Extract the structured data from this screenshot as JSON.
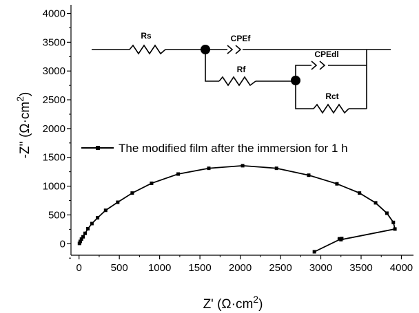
{
  "chart_data": {
    "type": "scatter",
    "xlabel": "Z' (Ω·cm",
    "xlabel_sup": "2",
    "xlabel_close": ")",
    "ylabel": "-Z'' (Ω·cm",
    "ylabel_sup": "2",
    "ylabel_close": ")",
    "xlim": [
      -100,
      4150
    ],
    "ylim": [
      -200,
      4150
    ],
    "xticks": [
      0,
      500,
      1000,
      1500,
      2000,
      2500,
      3000,
      3500,
      4000
    ],
    "yticks": [
      0,
      500,
      1000,
      1500,
      2000,
      2500,
      3000,
      3500,
      4000
    ],
    "legend": {
      "location": "middle-left"
    },
    "series": [
      {
        "name": "The modified film after the immersion for 1 h",
        "color": "#000000",
        "marker": "square",
        "x": [
          5,
          15,
          30,
          50,
          75,
          110,
          160,
          230,
          330,
          480,
          660,
          900,
          1230,
          1610,
          2030,
          2450,
          2850,
          3200,
          3480,
          3680,
          3820,
          3900,
          3920,
          3250,
          3230,
          3260,
          2920
        ],
        "y": [
          5,
          40,
          80,
          120,
          180,
          260,
          350,
          450,
          580,
          720,
          880,
          1050,
          1210,
          1310,
          1355,
          1310,
          1190,
          1040,
          880,
          710,
          530,
          370,
          255,
          70,
          85,
          90,
          -140
        ]
      }
    ]
  },
  "circuit": {
    "labels": {
      "rs": "Rs",
      "cpef": "CPEf",
      "rf": "Rf",
      "cpedl": "CPEdl",
      "rct": "Rct"
    }
  }
}
